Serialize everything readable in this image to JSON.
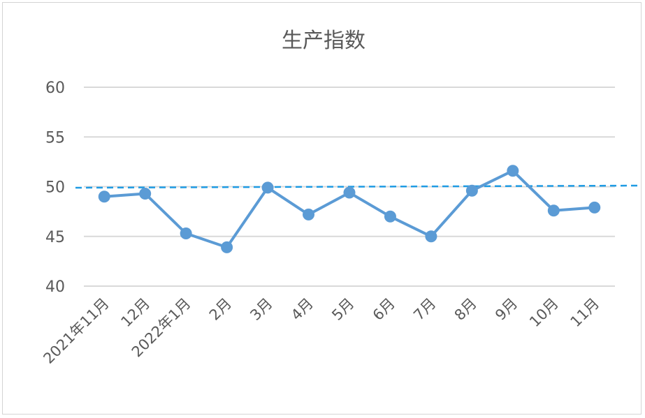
{
  "chart_data": {
    "type": "line",
    "title": "生产指数",
    "categories": [
      "2021年11月",
      "12月",
      "2022年1月",
      "2月",
      "3月",
      "4月",
      "5月",
      "6月",
      "7月",
      "8月",
      "9月",
      "10月",
      "11月"
    ],
    "series": [
      {
        "values": [
          49.0,
          49.3,
          45.3,
          43.9,
          49.9,
          47.2,
          49.4,
          47.0,
          45.0,
          49.6,
          51.6,
          47.6,
          47.9
        ],
        "color": "#5b9bd5"
      }
    ],
    "reference_line": {
      "y": 50,
      "color": "#1f9be3",
      "style": "dashed"
    },
    "y_ticks": [
      "40",
      "45",
      "50",
      "55",
      "60"
    ],
    "ylim": [
      40,
      60
    ],
    "grid": true,
    "legend": "none"
  }
}
